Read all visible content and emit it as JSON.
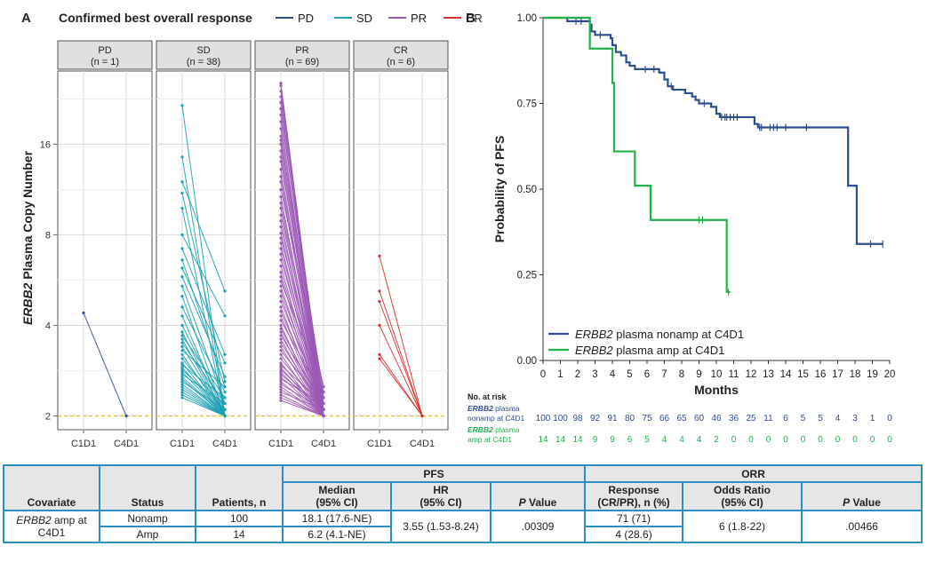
{
  "panel_a": {
    "letter": "A",
    "legend_title": "Confirmed best overall response",
    "legend": [
      {
        "key": "PD",
        "label": "PD",
        "color": "#2e4f8f"
      },
      {
        "key": "SD",
        "label": "SD",
        "color": "#1ba0b4"
      },
      {
        "key": "PR",
        "label": "PR",
        "color": "#9b59b6"
      },
      {
        "key": "CR",
        "label": "CR",
        "color": "#d63030"
      }
    ],
    "y_label_gene": "ERBB2",
    "y_label_rest": " Plasma Copy Number",
    "facets": [
      {
        "key": "PD",
        "title": "PD",
        "n": "(n = 1)"
      },
      {
        "key": "SD",
        "title": "SD",
        "n": "(n = 38)"
      },
      {
        "key": "PR",
        "title": "PR",
        "n": "(n = 69)"
      },
      {
        "key": "CR",
        "title": "CR",
        "n": "(n = 6)"
      }
    ],
    "x_tick_labels": [
      "C1D1",
      "C4D1"
    ],
    "threshold_color": "#e8c11c"
  },
  "panel_b": {
    "letter": "B",
    "nar_title": "No. at risk",
    "nar_rows": [
      {
        "label_gene": "ERBB2",
        "label_l1": " plasma",
        "label_l2": "nonamp at C4D1",
        "color": "#2e4f8f",
        "values": [
          "100",
          "100",
          "98",
          "92",
          "91",
          "80",
          "75",
          "66",
          "65",
          "60",
          "46",
          "36",
          "25",
          "11",
          "6",
          "5",
          "5",
          "4",
          "3",
          "1",
          "0"
        ]
      },
      {
        "label_gene": "ERBB2",
        "label_l1": " plasma",
        "label_l2": "amp at C4D1",
        "color": "#22b04b",
        "values": [
          "14",
          "14",
          "14",
          "9",
          "9",
          "6",
          "5",
          "4",
          "4",
          "4",
          "2",
          "0",
          "0",
          "0",
          "0",
          "0",
          "0",
          "0",
          "0",
          "0",
          "0"
        ]
      }
    ]
  },
  "chart_data": [
    {
      "type": "line",
      "title": "Confirmed best overall response",
      "xlabel": "",
      "ylabel": "ERBB2 Plasma Copy Number",
      "y_scale": "log2",
      "ylim": [
        1.8,
        28
      ],
      "y_ticks": [
        2,
        4,
        8,
        16
      ],
      "threshold": 2,
      "categories": [
        "C1D1",
        "C4D1"
      ],
      "facets": [
        {
          "name": "PD",
          "pairs": [
            [
              4.4,
              2.0
            ]
          ]
        },
        {
          "name": "SD",
          "pairs": [
            [
              21.5,
              2.0
            ],
            [
              14.5,
              2.0
            ],
            [
              12.0,
              5.2
            ],
            [
              11.0,
              2.6
            ],
            [
              9.8,
              2.0
            ],
            [
              8.0,
              4.3
            ],
            [
              7.2,
              3.2
            ],
            [
              6.6,
              2.5
            ],
            [
              6.2,
              3.0
            ],
            [
              5.8,
              2.7
            ],
            [
              5.4,
              2.2
            ],
            [
              5.0,
              2.0
            ],
            [
              4.6,
              2.4
            ],
            [
              4.3,
              2.0
            ],
            [
              4.0,
              2.1
            ],
            [
              3.8,
              2.0
            ],
            [
              3.7,
              2.3
            ],
            [
              3.6,
              2.0
            ],
            [
              3.5,
              2.2
            ],
            [
              3.4,
              2.0
            ],
            [
              3.3,
              2.5
            ],
            [
              3.2,
              2.0
            ],
            [
              3.1,
              2.1
            ],
            [
              3.0,
              2.0
            ],
            [
              2.95,
              2.3
            ],
            [
              2.9,
              2.0
            ],
            [
              2.85,
              2.1
            ],
            [
              2.8,
              2.0
            ],
            [
              2.75,
              2.2
            ],
            [
              2.7,
              2.0
            ],
            [
              2.65,
              2.0
            ],
            [
              2.6,
              2.1
            ],
            [
              2.55,
              2.0
            ],
            [
              2.5,
              2.0
            ],
            [
              2.45,
              2.0
            ],
            [
              2.4,
              2.0
            ],
            [
              2.35,
              2.0
            ],
            [
              2.3,
              2.0
            ]
          ]
        },
        {
          "name": "PR",
          "pairs": [
            [
              25.5,
              2.0
            ],
            [
              25.0,
              2.0
            ],
            [
              24.0,
              2.1
            ],
            [
              23.0,
              2.0
            ],
            [
              22.0,
              2.2
            ],
            [
              21.0,
              2.0
            ],
            [
              20.0,
              2.3
            ],
            [
              19.0,
              2.0
            ],
            [
              18.0,
              2.1
            ],
            [
              17.0,
              2.0
            ],
            [
              16.5,
              2.4
            ],
            [
              16.0,
              2.0
            ],
            [
              15.2,
              2.1
            ],
            [
              14.5,
              2.0
            ],
            [
              14.0,
              2.2
            ],
            [
              13.2,
              2.0
            ],
            [
              12.5,
              2.1
            ],
            [
              12.0,
              2.0
            ],
            [
              11.3,
              2.5
            ],
            [
              10.7,
              2.0
            ],
            [
              10.2,
              2.1
            ],
            [
              9.8,
              2.0
            ],
            [
              9.3,
              2.2
            ],
            [
              8.9,
              2.0
            ],
            [
              8.5,
              2.1
            ],
            [
              8.1,
              2.0
            ],
            [
              7.8,
              2.3
            ],
            [
              7.5,
              2.0
            ],
            [
              7.2,
              2.1
            ],
            [
              6.9,
              2.0
            ],
            [
              6.6,
              2.2
            ],
            [
              6.3,
              2.0
            ],
            [
              6.0,
              2.1
            ],
            [
              5.8,
              2.0
            ],
            [
              5.6,
              2.4
            ],
            [
              5.4,
              2.0
            ],
            [
              5.2,
              2.1
            ],
            [
              5.0,
              2.0
            ],
            [
              4.8,
              2.2
            ],
            [
              4.6,
              2.0
            ],
            [
              4.45,
              2.1
            ],
            [
              4.3,
              2.0
            ],
            [
              4.15,
              2.3
            ],
            [
              4.0,
              2.0
            ],
            [
              3.9,
              2.1
            ],
            [
              3.8,
              2.0
            ],
            [
              3.7,
              2.2
            ],
            [
              3.6,
              2.0
            ],
            [
              3.5,
              2.1
            ],
            [
              3.4,
              2.0
            ],
            [
              3.3,
              2.2
            ],
            [
              3.2,
              2.0
            ],
            [
              3.1,
              2.1
            ],
            [
              3.0,
              2.0
            ],
            [
              2.95,
              2.2
            ],
            [
              2.9,
              2.0
            ],
            [
              2.85,
              2.1
            ],
            [
              2.8,
              2.0
            ],
            [
              2.75,
              2.1
            ],
            [
              2.7,
              2.0
            ],
            [
              2.65,
              2.2
            ],
            [
              2.6,
              2.0
            ],
            [
              2.55,
              2.1
            ],
            [
              2.5,
              2.0
            ],
            [
              2.45,
              2.0
            ],
            [
              2.4,
              2.1
            ],
            [
              2.35,
              2.0
            ],
            [
              2.3,
              2.0
            ],
            [
              2.25,
              2.0
            ]
          ]
        },
        {
          "name": "CR",
          "pairs": [
            [
              6.8,
              2.0
            ],
            [
              5.2,
              2.0
            ],
            [
              4.8,
              2.0
            ],
            [
              4.0,
              2.0
            ],
            [
              3.2,
              2.0
            ],
            [
              3.1,
              2.0
            ]
          ]
        }
      ]
    },
    {
      "type": "line",
      "title": "",
      "xlabel": "Months",
      "ylabel": "Probability of PFS",
      "xlim": [
        0,
        20
      ],
      "ylim": [
        0,
        1
      ],
      "x_ticks": [
        0,
        1,
        2,
        3,
        4,
        5,
        6,
        7,
        8,
        9,
        10,
        11,
        12,
        13,
        14,
        15,
        16,
        17,
        18,
        19,
        20
      ],
      "y_ticks": [
        0.0,
        0.25,
        0.5,
        0.75,
        1.0
      ],
      "y_tick_labels": [
        "0.00",
        "0.25",
        "0.50",
        "0.75",
        "1.00"
      ],
      "legend": "bottom-left",
      "series": [
        {
          "name": "ERBB2 plasma nonamp at C4D1",
          "name_gene": "ERBB2",
          "name_rest": " plasma nonamp at C4D1",
          "color": "#2e4f8f",
          "steps": [
            [
              0,
              1.0
            ],
            [
              1.4,
              0.99
            ],
            [
              2.7,
              0.98
            ],
            [
              2.8,
              0.96
            ],
            [
              3.0,
              0.95
            ],
            [
              3.9,
              0.94
            ],
            [
              4.0,
              0.92
            ],
            [
              4.2,
              0.9
            ],
            [
              4.5,
              0.89
            ],
            [
              4.8,
              0.87
            ],
            [
              5.0,
              0.86
            ],
            [
              5.3,
              0.85
            ],
            [
              6.0,
              0.85
            ],
            [
              6.7,
              0.84
            ],
            [
              7.0,
              0.82
            ],
            [
              7.2,
              0.8
            ],
            [
              7.5,
              0.79
            ],
            [
              8.2,
              0.78
            ],
            [
              8.6,
              0.77
            ],
            [
              8.8,
              0.76
            ],
            [
              9.0,
              0.75
            ],
            [
              9.7,
              0.74
            ],
            [
              10.0,
              0.72
            ],
            [
              10.2,
              0.71
            ],
            [
              12.2,
              0.69
            ],
            [
              12.4,
              0.68
            ],
            [
              17.6,
              0.68
            ],
            [
              17.6,
              0.51
            ],
            [
              18.1,
              0.51
            ],
            [
              18.1,
              0.34
            ],
            [
              19.6,
              0.34
            ]
          ],
          "censors": [
            [
              1.9,
              0.99
            ],
            [
              2.2,
              0.99
            ],
            [
              3.3,
              0.95
            ],
            [
              5.9,
              0.85
            ],
            [
              6.4,
              0.85
            ],
            [
              7.4,
              0.8
            ],
            [
              9.3,
              0.75
            ],
            [
              10.3,
              0.71
            ],
            [
              10.5,
              0.71
            ],
            [
              10.6,
              0.71
            ],
            [
              10.8,
              0.71
            ],
            [
              11.0,
              0.71
            ],
            [
              11.2,
              0.71
            ],
            [
              12.5,
              0.68
            ],
            [
              12.6,
              0.68
            ],
            [
              13.1,
              0.68
            ],
            [
              13.3,
              0.68
            ],
            [
              13.5,
              0.68
            ],
            [
              14.0,
              0.68
            ],
            [
              15.2,
              0.68
            ],
            [
              18.9,
              0.34
            ],
            [
              19.6,
              0.34
            ]
          ]
        },
        {
          "name": "ERBB2 plasma amp at C4D1",
          "name_gene": "ERBB2",
          "name_rest": " plasma amp at C4D1",
          "color": "#22b04b",
          "steps": [
            [
              0,
              1.0
            ],
            [
              2.7,
              1.0
            ],
            [
              2.7,
              0.91
            ],
            [
              4.0,
              0.91
            ],
            [
              4.0,
              0.81
            ],
            [
              4.1,
              0.81
            ],
            [
              4.1,
              0.61
            ],
            [
              5.3,
              0.61
            ],
            [
              5.3,
              0.51
            ],
            [
              6.2,
              0.51
            ],
            [
              6.2,
              0.41
            ],
            [
              10.6,
              0.41
            ],
            [
              10.6,
              0.2
            ],
            [
              10.8,
              0.2
            ]
          ],
          "censors": [
            [
              2.7,
              0.99
            ],
            [
              9.0,
              0.41
            ],
            [
              9.2,
              0.41
            ],
            [
              10.7,
              0.2
            ]
          ]
        }
      ]
    }
  ],
  "table": {
    "header_groups": {
      "pfs": "PFS",
      "orr": "ORR"
    },
    "headers": {
      "covariate": "Covariate",
      "status": "Status",
      "patients": "Patients, n",
      "median_l1": "Median",
      "median_l2": "(95% CI)",
      "hr_l1": "HR",
      "hr_l2": "(95% CI)",
      "p_italic": "P",
      "p_rest": " Value",
      "response_l1": "Response",
      "response_l2": "(CR/PR), n (%)",
      "or_l1": "Odds Ratio",
      "or_l2": "(95% CI)",
      "p2_italic": "P",
      "p2_rest": " Value"
    },
    "covariate_gene": "ERBB2",
    "covariate_l1": " amp at",
    "covariate_l2": "C4D1",
    "rows": [
      {
        "status": "Nonamp",
        "patients": "100",
        "median": "18.1 (17.6-NE)",
        "response": "71 (71)"
      },
      {
        "status": "Amp",
        "patients": "14",
        "median": "6.2 (4.1-NE)",
        "response": "4 (28.6)"
      }
    ],
    "hr": "3.55 (1.53-8.24)",
    "pfs_p": ".00309",
    "odds_ratio": "6 (1.8-22)",
    "orr_p": ".00466"
  }
}
